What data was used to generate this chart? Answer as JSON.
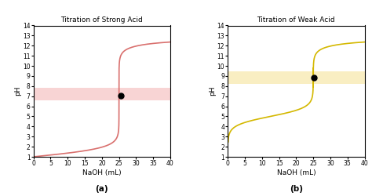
{
  "title_a": "Titration of Strong Acid",
  "title_b": "Titration of Weak Acid",
  "xlabel": "NaOH (mL)",
  "ylabel": "pH",
  "label_a": "(a)",
  "label_b": "(b)",
  "xlim": [
    0,
    40
  ],
  "ylim": [
    1,
    14
  ],
  "yticks": [
    1,
    2,
    3,
    4,
    5,
    6,
    7,
    8,
    9,
    10,
    11,
    12,
    13,
    14
  ],
  "xticks": [
    0,
    5,
    10,
    15,
    20,
    25,
    30,
    35,
    40
  ],
  "curve_a_color": "#d9706e",
  "curve_b_color": "#d4b800",
  "band_a_color": "#f0a0a0",
  "band_b_color": "#f5e090",
  "band_a_alpha": 0.45,
  "band_b_alpha": 0.55,
  "band_a_ymin": 6.6,
  "band_a_ymax": 7.8,
  "band_b_ymin": 8.25,
  "band_b_ymax": 9.45,
  "eq_a_x": 25.5,
  "eq_a_y": 7.05,
  "eq_b_x": 25.2,
  "eq_b_y": 8.85,
  "dot_color": "black",
  "dot_size": 25,
  "curve_lw": 1.2
}
